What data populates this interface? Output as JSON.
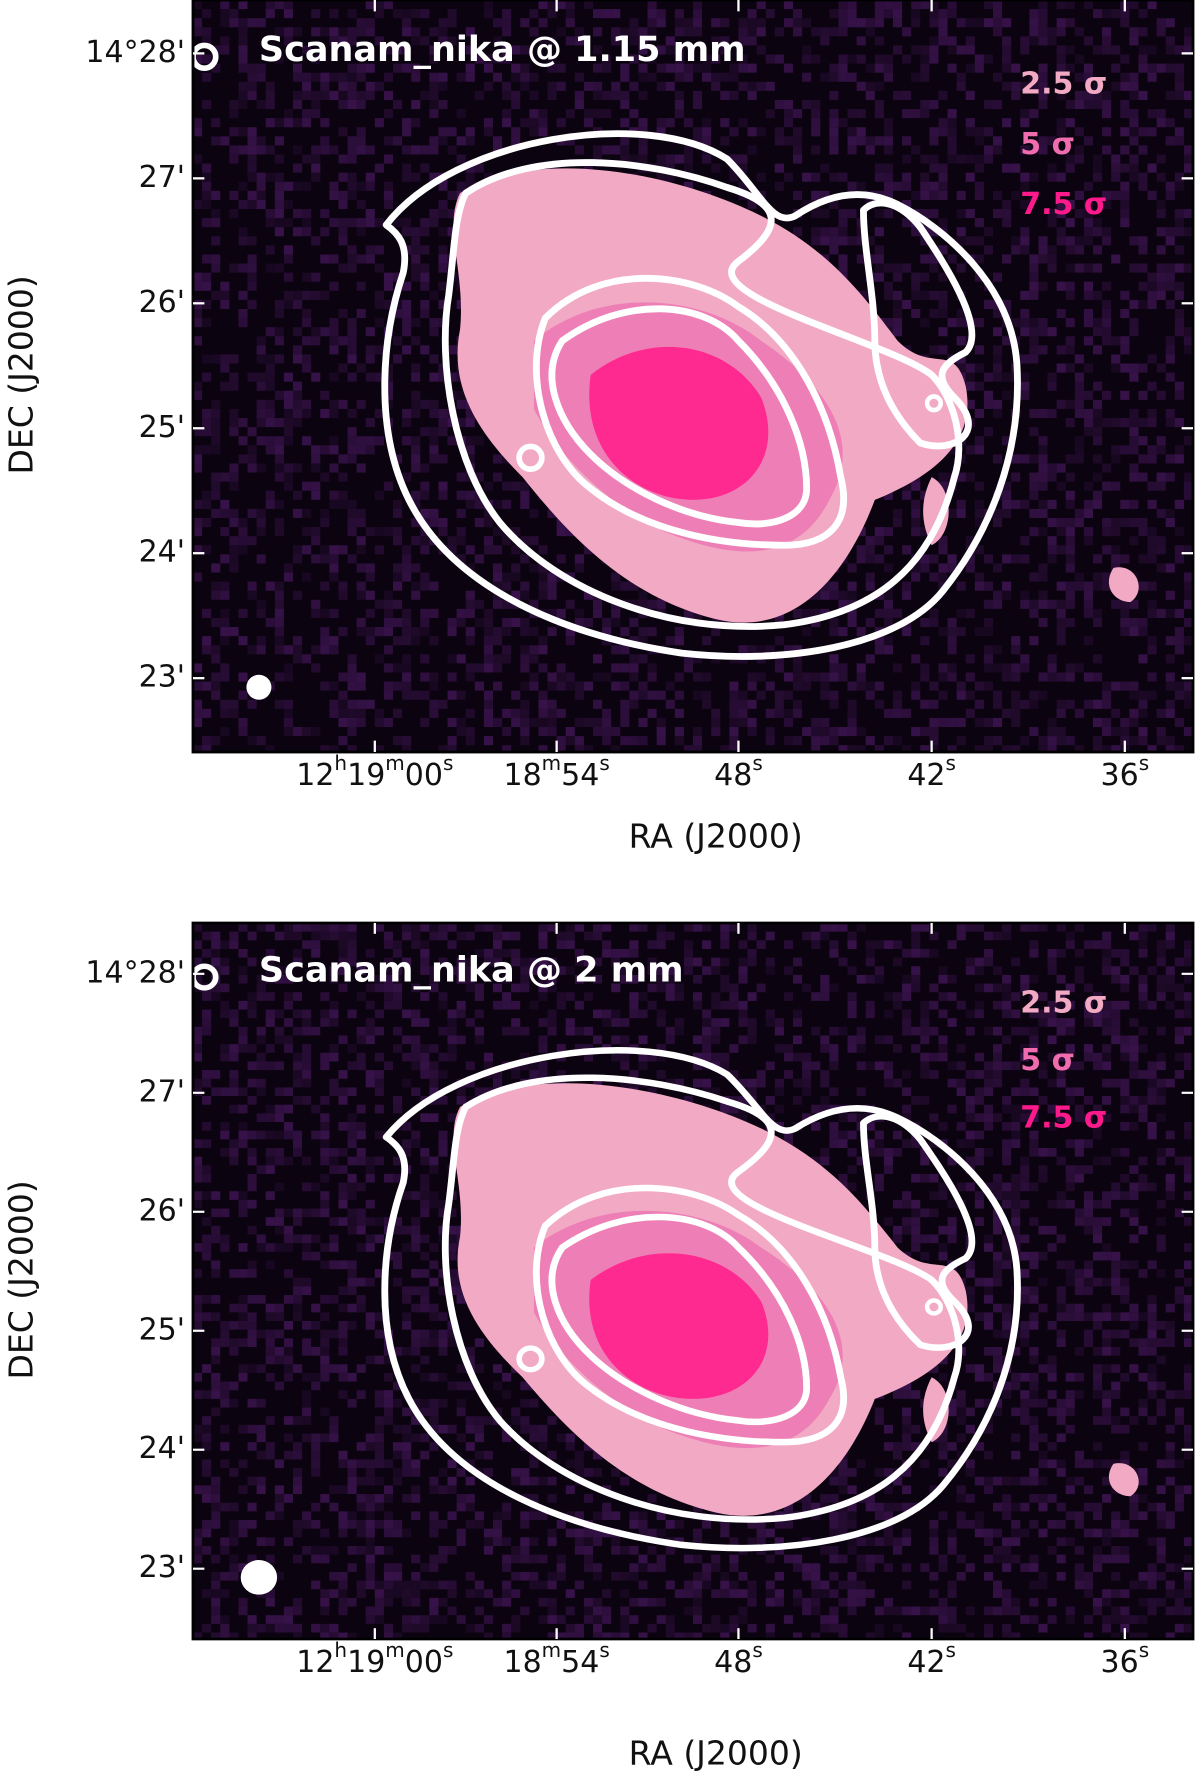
{
  "panels": [
    {
      "title": "Scanam_nika @ 1.15 mm",
      "legend": [
        "2.5 σ",
        "5 σ",
        "7.5 σ"
      ],
      "yticks": [
        "14°28'",
        "27'",
        "26'",
        "25'",
        "24'",
        "23'"
      ],
      "xticks": [
        [
          "12",
          "h",
          "19",
          "m",
          "00",
          "s"
        ],
        [
          "18",
          "m",
          "54",
          "s"
        ],
        [
          "48",
          "s"
        ],
        [
          "42",
          "s"
        ],
        [
          "36",
          "s"
        ]
      ],
      "xlabel": "RA (J2000)",
      "ylabel": "DEC  (J2000)"
    },
    {
      "title": "Scanam_nika @ 2 mm",
      "legend": [
        "2.5 σ",
        "5 σ",
        "7.5 σ"
      ],
      "yticks": [
        "14°28'",
        "27'",
        "26'",
        "25'",
        "24'",
        "23'"
      ],
      "xticks": [
        [
          "12",
          "h",
          "19",
          "m",
          "00",
          "s"
        ],
        [
          "18",
          "m",
          "54",
          "s"
        ],
        [
          "48",
          "s"
        ],
        [
          "42",
          "s"
        ],
        [
          "36",
          "s"
        ]
      ],
      "xlabel": "RA (J2000)",
      "ylabel": "DEC  (J2000)"
    }
  ]
}
